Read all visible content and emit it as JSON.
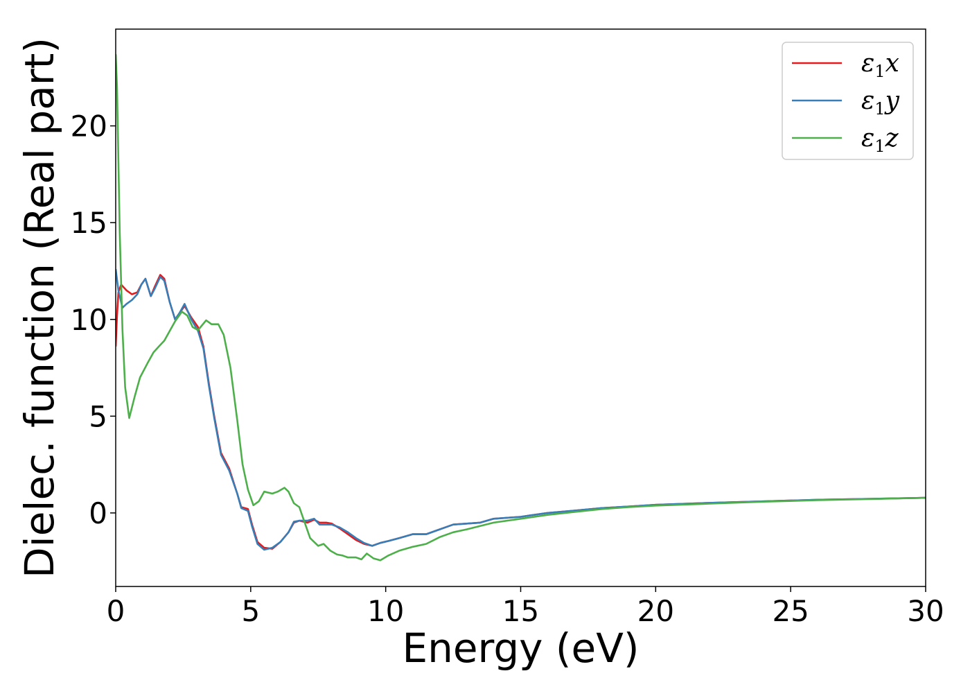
{
  "chart_data": {
    "type": "line",
    "title": "",
    "xlabel": "Energy (eV)",
    "ylabel": "Dielec. function (Real part)",
    "xlim": [
      0,
      30
    ],
    "ylim": [
      -3.8,
      25
    ],
    "xticks": [
      0,
      5,
      10,
      15,
      20,
      25,
      30
    ],
    "yticks": [
      0,
      5,
      10,
      15,
      20
    ],
    "grid": false,
    "legend_position": "top-right",
    "series": [
      {
        "name": "ε1x",
        "legend_base": "ε",
        "legend_sub": "1",
        "legend_var": "x",
        "color": "#e41a1c",
        "points": [
          [
            0,
            8.6
          ],
          [
            0.05,
            10.2
          ],
          [
            0.1,
            11.4
          ],
          [
            0.2,
            11.8
          ],
          [
            0.4,
            11.5
          ],
          [
            0.6,
            11.3
          ],
          [
            0.8,
            11.4
          ],
          [
            0.95,
            11.8
          ],
          [
            1.1,
            12.1
          ],
          [
            1.3,
            11.2
          ],
          [
            1.45,
            11.7
          ],
          [
            1.65,
            12.3
          ],
          [
            1.8,
            12.1
          ],
          [
            2.0,
            10.9
          ],
          [
            2.2,
            10.0
          ],
          [
            2.35,
            10.3
          ],
          [
            2.55,
            10.7
          ],
          [
            2.8,
            10.1
          ],
          [
            3.05,
            9.6
          ],
          [
            3.25,
            8.6
          ],
          [
            3.45,
            6.7
          ],
          [
            3.65,
            5.0
          ],
          [
            3.9,
            3.1
          ],
          [
            4.2,
            2.3
          ],
          [
            4.5,
            1.0
          ],
          [
            4.65,
            0.3
          ],
          [
            4.9,
            0.2
          ],
          [
            5.05,
            -0.6
          ],
          [
            5.25,
            -1.5
          ],
          [
            5.5,
            -1.8
          ],
          [
            5.8,
            -1.85
          ],
          [
            6.1,
            -1.5
          ],
          [
            6.4,
            -1.0
          ],
          [
            6.6,
            -0.5
          ],
          [
            6.8,
            -0.4
          ],
          [
            7.1,
            -0.5
          ],
          [
            7.35,
            -0.35
          ],
          [
            7.55,
            -0.5
          ],
          [
            7.8,
            -0.5
          ],
          [
            8.0,
            -0.55
          ],
          [
            8.3,
            -0.8
          ],
          [
            8.6,
            -1.1
          ],
          [
            8.9,
            -1.4
          ],
          [
            9.2,
            -1.6
          ],
          [
            9.5,
            -1.7
          ],
          [
            9.8,
            -1.55
          ],
          [
            10.1,
            -1.45
          ],
          [
            10.5,
            -1.3
          ],
          [
            11.0,
            -1.1
          ],
          [
            11.5,
            -1.1
          ],
          [
            12.0,
            -0.85
          ],
          [
            12.5,
            -0.6
          ],
          [
            13.0,
            -0.55
          ],
          [
            13.5,
            -0.5
          ],
          [
            14.0,
            -0.3
          ],
          [
            15.0,
            -0.2
          ],
          [
            16.0,
            0.0
          ],
          [
            17.0,
            0.12
          ],
          [
            18.0,
            0.25
          ],
          [
            19.0,
            0.33
          ],
          [
            20.0,
            0.42
          ],
          [
            22.0,
            0.52
          ],
          [
            24.0,
            0.6
          ],
          [
            26.0,
            0.68
          ],
          [
            28.0,
            0.73
          ],
          [
            30.0,
            0.78
          ]
        ]
      },
      {
        "name": "ε1y",
        "legend_base": "ε",
        "legend_sub": "1",
        "legend_var": "y",
        "color": "#377eb8",
        "points": [
          [
            0,
            12.6
          ],
          [
            0.1,
            11.5
          ],
          [
            0.25,
            10.6
          ],
          [
            0.4,
            10.8
          ],
          [
            0.6,
            11.0
          ],
          [
            0.8,
            11.3
          ],
          [
            0.95,
            11.8
          ],
          [
            1.1,
            12.1
          ],
          [
            1.3,
            11.2
          ],
          [
            1.45,
            11.6
          ],
          [
            1.65,
            12.2
          ],
          [
            1.8,
            12.0
          ],
          [
            2.0,
            10.9
          ],
          [
            2.2,
            10.0
          ],
          [
            2.35,
            10.3
          ],
          [
            2.55,
            10.8
          ],
          [
            2.8,
            10.0
          ],
          [
            3.05,
            9.4
          ],
          [
            3.25,
            8.5
          ],
          [
            3.45,
            6.6
          ],
          [
            3.65,
            4.9
          ],
          [
            3.9,
            3.0
          ],
          [
            4.2,
            2.2
          ],
          [
            4.5,
            1.0
          ],
          [
            4.65,
            0.25
          ],
          [
            4.9,
            0.1
          ],
          [
            5.05,
            -0.7
          ],
          [
            5.25,
            -1.6
          ],
          [
            5.5,
            -1.9
          ],
          [
            5.8,
            -1.8
          ],
          [
            6.1,
            -1.5
          ],
          [
            6.4,
            -1.0
          ],
          [
            6.6,
            -0.45
          ],
          [
            6.8,
            -0.4
          ],
          [
            7.1,
            -0.4
          ],
          [
            7.35,
            -0.3
          ],
          [
            7.55,
            -0.6
          ],
          [
            7.8,
            -0.6
          ],
          [
            8.0,
            -0.6
          ],
          [
            8.3,
            -0.75
          ],
          [
            8.6,
            -1.0
          ],
          [
            8.9,
            -1.3
          ],
          [
            9.2,
            -1.55
          ],
          [
            9.5,
            -1.7
          ],
          [
            9.8,
            -1.55
          ],
          [
            10.1,
            -1.45
          ],
          [
            10.5,
            -1.3
          ],
          [
            11.0,
            -1.1
          ],
          [
            11.5,
            -1.1
          ],
          [
            12.0,
            -0.85
          ],
          [
            12.5,
            -0.6
          ],
          [
            13.0,
            -0.55
          ],
          [
            13.5,
            -0.5
          ],
          [
            14.0,
            -0.3
          ],
          [
            15.0,
            -0.2
          ],
          [
            16.0,
            0.0
          ],
          [
            17.0,
            0.12
          ],
          [
            18.0,
            0.25
          ],
          [
            19.0,
            0.33
          ],
          [
            20.0,
            0.42
          ],
          [
            22.0,
            0.52
          ],
          [
            24.0,
            0.6
          ],
          [
            26.0,
            0.68
          ],
          [
            28.0,
            0.73
          ],
          [
            30.0,
            0.78
          ]
        ]
      },
      {
        "name": "ε1z",
        "legend_base": "ε",
        "legend_sub": "1",
        "legend_var": "z",
        "color": "#4daf4a",
        "points": [
          [
            0,
            23.7
          ],
          [
            0.05,
            22.0
          ],
          [
            0.15,
            14.5
          ],
          [
            0.25,
            9.5
          ],
          [
            0.35,
            6.5
          ],
          [
            0.5,
            4.9
          ],
          [
            0.7,
            6.0
          ],
          [
            0.9,
            7.0
          ],
          [
            1.2,
            7.8
          ],
          [
            1.4,
            8.3
          ],
          [
            1.6,
            8.6
          ],
          [
            1.8,
            8.9
          ],
          [
            2.0,
            9.4
          ],
          [
            2.2,
            9.9
          ],
          [
            2.45,
            10.4
          ],
          [
            2.65,
            10.2
          ],
          [
            2.85,
            9.6
          ],
          [
            3.05,
            9.45
          ],
          [
            3.2,
            9.7
          ],
          [
            3.35,
            9.95
          ],
          [
            3.55,
            9.75
          ],
          [
            3.8,
            9.75
          ],
          [
            4.0,
            9.2
          ],
          [
            4.25,
            7.5
          ],
          [
            4.5,
            4.8
          ],
          [
            4.7,
            2.5
          ],
          [
            4.9,
            1.2
          ],
          [
            5.1,
            0.4
          ],
          [
            5.3,
            0.6
          ],
          [
            5.5,
            1.1
          ],
          [
            5.8,
            1.0
          ],
          [
            6.0,
            1.1
          ],
          [
            6.25,
            1.3
          ],
          [
            6.4,
            1.1
          ],
          [
            6.6,
            0.5
          ],
          [
            6.8,
            0.3
          ],
          [
            7.0,
            -0.5
          ],
          [
            7.2,
            -1.3
          ],
          [
            7.5,
            -1.7
          ],
          [
            7.7,
            -1.6
          ],
          [
            7.95,
            -1.95
          ],
          [
            8.2,
            -2.15
          ],
          [
            8.4,
            -2.2
          ],
          [
            8.6,
            -2.3
          ],
          [
            8.9,
            -2.3
          ],
          [
            9.1,
            -2.4
          ],
          [
            9.3,
            -2.1
          ],
          [
            9.55,
            -2.35
          ],
          [
            9.8,
            -2.45
          ],
          [
            10.1,
            -2.2
          ],
          [
            10.5,
            -1.95
          ],
          [
            11.0,
            -1.75
          ],
          [
            11.5,
            -1.6
          ],
          [
            12.0,
            -1.25
          ],
          [
            12.5,
            -1.0
          ],
          [
            13.0,
            -0.85
          ],
          [
            14.0,
            -0.5
          ],
          [
            15.0,
            -0.3
          ],
          [
            16.0,
            -0.1
          ],
          [
            17.0,
            0.05
          ],
          [
            18.0,
            0.2
          ],
          [
            19.0,
            0.3
          ],
          [
            20.0,
            0.38
          ],
          [
            22.0,
            0.48
          ],
          [
            24.0,
            0.58
          ],
          [
            26.0,
            0.66
          ],
          [
            28.0,
            0.72
          ],
          [
            30.0,
            0.78
          ]
        ]
      }
    ]
  }
}
